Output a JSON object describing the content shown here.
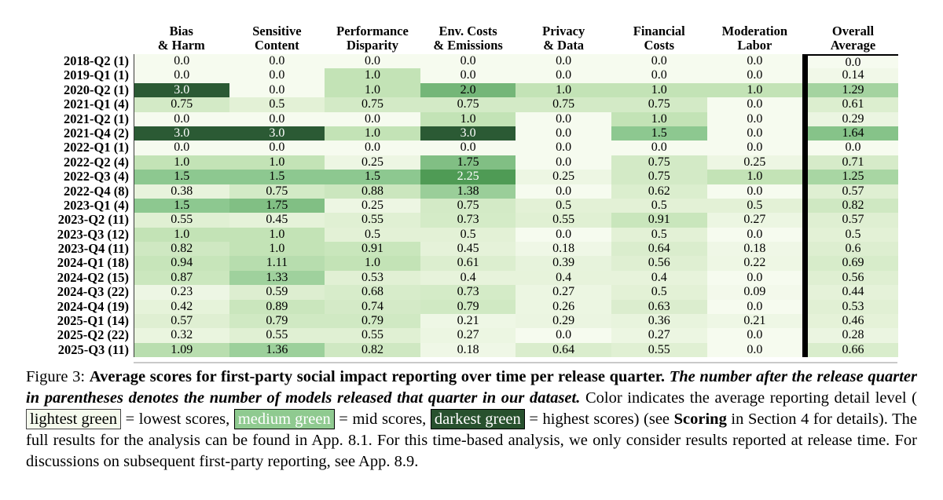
{
  "figure": {
    "columns": [
      {
        "line1": "Bias",
        "line2": "& Harm"
      },
      {
        "line1": "Sensitive",
        "line2": "Content"
      },
      {
        "line1": "Performance",
        "line2": "Disparity"
      },
      {
        "line1": "Env. Costs",
        "line2": "& Emissions"
      },
      {
        "line1": "Privacy",
        "line2": "& Data"
      },
      {
        "line1": "Financial",
        "line2": "Costs"
      },
      {
        "line1": "Moderation",
        "line2": "Labor"
      },
      {
        "line1": "Overall",
        "line2": "Average"
      }
    ],
    "rows": [
      {
        "label": "2018-Q2 (1)",
        "values": [
          "0.0",
          "0.0",
          "0.0",
          "0.0",
          "0.0",
          "0.0",
          "0.0",
          "0.0"
        ]
      },
      {
        "label": "2019-Q1 (1)",
        "values": [
          "0.0",
          "0.0",
          "1.0",
          "0.0",
          "0.0",
          "0.0",
          "0.0",
          "0.14"
        ]
      },
      {
        "label": "2020-Q2 (1)",
        "values": [
          "3.0",
          "0.0",
          "1.0",
          "2.0",
          "1.0",
          "1.0",
          "1.0",
          "1.29"
        ]
      },
      {
        "label": "2021-Q1 (4)",
        "values": [
          "0.75",
          "0.5",
          "0.75",
          "0.75",
          "0.75",
          "0.75",
          "0.0",
          "0.61"
        ]
      },
      {
        "label": "2021-Q2 (1)",
        "values": [
          "0.0",
          "0.0",
          "0.0",
          "1.0",
          "0.0",
          "1.0",
          "0.0",
          "0.29"
        ]
      },
      {
        "label": "2021-Q4 (2)",
        "values": [
          "3.0",
          "3.0",
          "1.0",
          "3.0",
          "0.0",
          "1.5",
          "0.0",
          "1.64"
        ]
      },
      {
        "label": "2022-Q1 (1)",
        "values": [
          "0.0",
          "0.0",
          "0.0",
          "0.0",
          "0.0",
          "0.0",
          "0.0",
          "0.0"
        ]
      },
      {
        "label": "2022-Q2 (4)",
        "values": [
          "1.0",
          "1.0",
          "0.25",
          "1.75",
          "0.0",
          "0.75",
          "0.25",
          "0.71"
        ]
      },
      {
        "label": "2022-Q3 (4)",
        "values": [
          "1.5",
          "1.5",
          "1.5",
          "2.25",
          "0.25",
          "0.75",
          "1.0",
          "1.25"
        ]
      },
      {
        "label": "2022-Q4 (8)",
        "values": [
          "0.38",
          "0.75",
          "0.88",
          "1.38",
          "0.0",
          "0.62",
          "0.0",
          "0.57"
        ]
      },
      {
        "label": "2023-Q1 (4)",
        "values": [
          "1.5",
          "1.75",
          "0.25",
          "0.75",
          "0.5",
          "0.5",
          "0.5",
          "0.82"
        ]
      },
      {
        "label": "2023-Q2 (11)",
        "values": [
          "0.55",
          "0.45",
          "0.55",
          "0.73",
          "0.55",
          "0.91",
          "0.27",
          "0.57"
        ]
      },
      {
        "label": "2023-Q3 (12)",
        "values": [
          "1.0",
          "1.0",
          "0.5",
          "0.5",
          "0.0",
          "0.5",
          "0.0",
          "0.5"
        ]
      },
      {
        "label": "2023-Q4 (11)",
        "values": [
          "0.82",
          "1.0",
          "0.91",
          "0.45",
          "0.18",
          "0.64",
          "0.18",
          "0.6"
        ]
      },
      {
        "label": "2024-Q1 (18)",
        "values": [
          "0.94",
          "1.11",
          "1.0",
          "0.61",
          "0.39",
          "0.56",
          "0.22",
          "0.69"
        ]
      },
      {
        "label": "2024-Q2 (15)",
        "values": [
          "0.87",
          "1.33",
          "0.53",
          "0.4",
          "0.4",
          "0.4",
          "0.0",
          "0.56"
        ]
      },
      {
        "label": "2024-Q3 (22)",
        "values": [
          "0.23",
          "0.59",
          "0.68",
          "0.73",
          "0.27",
          "0.5",
          "0.09",
          "0.44"
        ]
      },
      {
        "label": "2024-Q4 (19)",
        "values": [
          "0.42",
          "0.89",
          "0.74",
          "0.79",
          "0.26",
          "0.63",
          "0.0",
          "0.53"
        ]
      },
      {
        "label": "2025-Q1 (14)",
        "values": [
          "0.57",
          "0.79",
          "0.79",
          "0.21",
          "0.29",
          "0.36",
          "0.21",
          "0.46"
        ]
      },
      {
        "label": "2025-Q2 (22)",
        "values": [
          "0.32",
          "0.55",
          "0.55",
          "0.27",
          "0.0",
          "0.27",
          "0.0",
          "0.28"
        ]
      },
      {
        "label": "2025-Q3 (11)",
        "values": [
          "1.09",
          "1.36",
          "0.82",
          "0.18",
          "0.64",
          "0.55",
          "0.0",
          "0.66"
        ]
      }
    ]
  },
  "chart_data": {
    "type": "heatmap",
    "title": "Average scores for first-party social impact reporting over time per release quarter",
    "columns": [
      "Bias & Harm",
      "Sensitive Content",
      "Performance Disparity",
      "Env. Costs & Emissions",
      "Privacy & Data",
      "Financial Costs",
      "Moderation Labor",
      "Overall Average"
    ],
    "rows": [
      "2018-Q2 (1)",
      "2019-Q1 (1)",
      "2020-Q2 (1)",
      "2021-Q1 (4)",
      "2021-Q2 (1)",
      "2021-Q4 (2)",
      "2022-Q1 (1)",
      "2022-Q2 (4)",
      "2022-Q3 (4)",
      "2022-Q4 (8)",
      "2023-Q1 (4)",
      "2023-Q2 (11)",
      "2023-Q3 (12)",
      "2023-Q4 (11)",
      "2024-Q1 (18)",
      "2024-Q2 (15)",
      "2024-Q3 (22)",
      "2024-Q4 (19)",
      "2025-Q1 (14)",
      "2025-Q2 (22)",
      "2025-Q3 (11)"
    ],
    "values": [
      [
        0,
        0,
        0,
        0,
        0,
        0,
        0,
        0
      ],
      [
        0,
        0,
        1,
        0,
        0,
        0,
        0,
        0.14
      ],
      [
        3,
        0,
        1,
        2,
        1,
        1,
        1,
        1.29
      ],
      [
        0.75,
        0.5,
        0.75,
        0.75,
        0.75,
        0.75,
        0,
        0.61
      ],
      [
        0,
        0,
        0,
        1,
        0,
        1,
        0,
        0.29
      ],
      [
        3,
        3,
        1,
        3,
        0,
        1.5,
        0,
        1.64
      ],
      [
        0,
        0,
        0,
        0,
        0,
        0,
        0,
        0
      ],
      [
        1,
        1,
        0.25,
        1.75,
        0,
        0.75,
        0.25,
        0.71
      ],
      [
        1.5,
        1.5,
        1.5,
        2.25,
        0.25,
        0.75,
        1,
        1.25
      ],
      [
        0.38,
        0.75,
        0.88,
        1.38,
        0,
        0.62,
        0,
        0.57
      ],
      [
        1.5,
        1.75,
        0.25,
        0.75,
        0.5,
        0.5,
        0.5,
        0.82
      ],
      [
        0.55,
        0.45,
        0.55,
        0.73,
        0.55,
        0.91,
        0.27,
        0.57
      ],
      [
        1,
        1,
        0.5,
        0.5,
        0,
        0.5,
        0,
        0.5
      ],
      [
        0.82,
        1,
        0.91,
        0.45,
        0.18,
        0.64,
        0.18,
        0.6
      ],
      [
        0.94,
        1.11,
        1,
        0.61,
        0.39,
        0.56,
        0.22,
        0.69
      ],
      [
        0.87,
        1.33,
        0.53,
        0.4,
        0.4,
        0.4,
        0,
        0.56
      ],
      [
        0.23,
        0.59,
        0.68,
        0.73,
        0.27,
        0.5,
        0.09,
        0.44
      ],
      [
        0.42,
        0.89,
        0.74,
        0.79,
        0.26,
        0.63,
        0,
        0.53
      ],
      [
        0.57,
        0.79,
        0.79,
        0.21,
        0.29,
        0.36,
        0.21,
        0.46
      ],
      [
        0.32,
        0.55,
        0.55,
        0.27,
        0,
        0.27,
        0,
        0.28
      ],
      [
        1.09,
        1.36,
        0.82,
        0.18,
        0.64,
        0.55,
        0,
        0.66
      ]
    ],
    "value_range": [
      0,
      3
    ],
    "colormap": "greens",
    "legend_position": "in-caption",
    "grid": false
  },
  "color_scale": {
    "stops": [
      [
        0,
        "#f6fbef"
      ],
      [
        0.5,
        "#e3f1d6"
      ],
      [
        1.0,
        "#c3e3b6"
      ],
      [
        1.5,
        "#8dc890"
      ],
      [
        2.0,
        "#74b678"
      ],
      [
        2.25,
        "#4f9b55"
      ],
      [
        3.0,
        "#2b5a34"
      ]
    ],
    "white_text_threshold": 2.25
  },
  "caption": {
    "segments": [
      {
        "t": "Figure 3:  ",
        "s": "normal"
      },
      {
        "t": "Average scores for first-party social impact reporting over time per release quarter. ",
        "s": "bold"
      },
      {
        "t": "The number after the release quarter in parentheses denotes the number of models released that quarter in our dataset. ",
        "s": "bolditalic"
      },
      {
        "t": "Color indicates the average reporting detail level (",
        "s": "normal"
      },
      {
        "t": "lightest green",
        "s": "swatch-light"
      },
      {
        "t": " = lowest scores, ",
        "s": "normal"
      },
      {
        "t": "medium green",
        "s": "swatch-medium"
      },
      {
        "t": " = mid scores, ",
        "s": "normal"
      },
      {
        "t": "darkest green",
        "s": "swatch-dark"
      },
      {
        "t": " = highest scores) (see ",
        "s": "normal"
      },
      {
        "t": "Scoring",
        "s": "bold"
      },
      {
        "t": " in Section 4 for details). The full results for the analysis can be found in App. 8.1. For this time-based analysis, we only consider results reported at release time. For discussions on subsequent first-party reporting, see App. 8.9.",
        "s": "normal"
      }
    ]
  },
  "swatches": {
    "light": {
      "bg": "#f5faed",
      "text": "#000000",
      "border": "#444444"
    },
    "medium": {
      "bg": "#8fca90",
      "text": "#ffffff",
      "border": "#000000"
    },
    "dark": {
      "bg": "#28512e",
      "text": "#ffffff",
      "border": "#000000"
    }
  }
}
